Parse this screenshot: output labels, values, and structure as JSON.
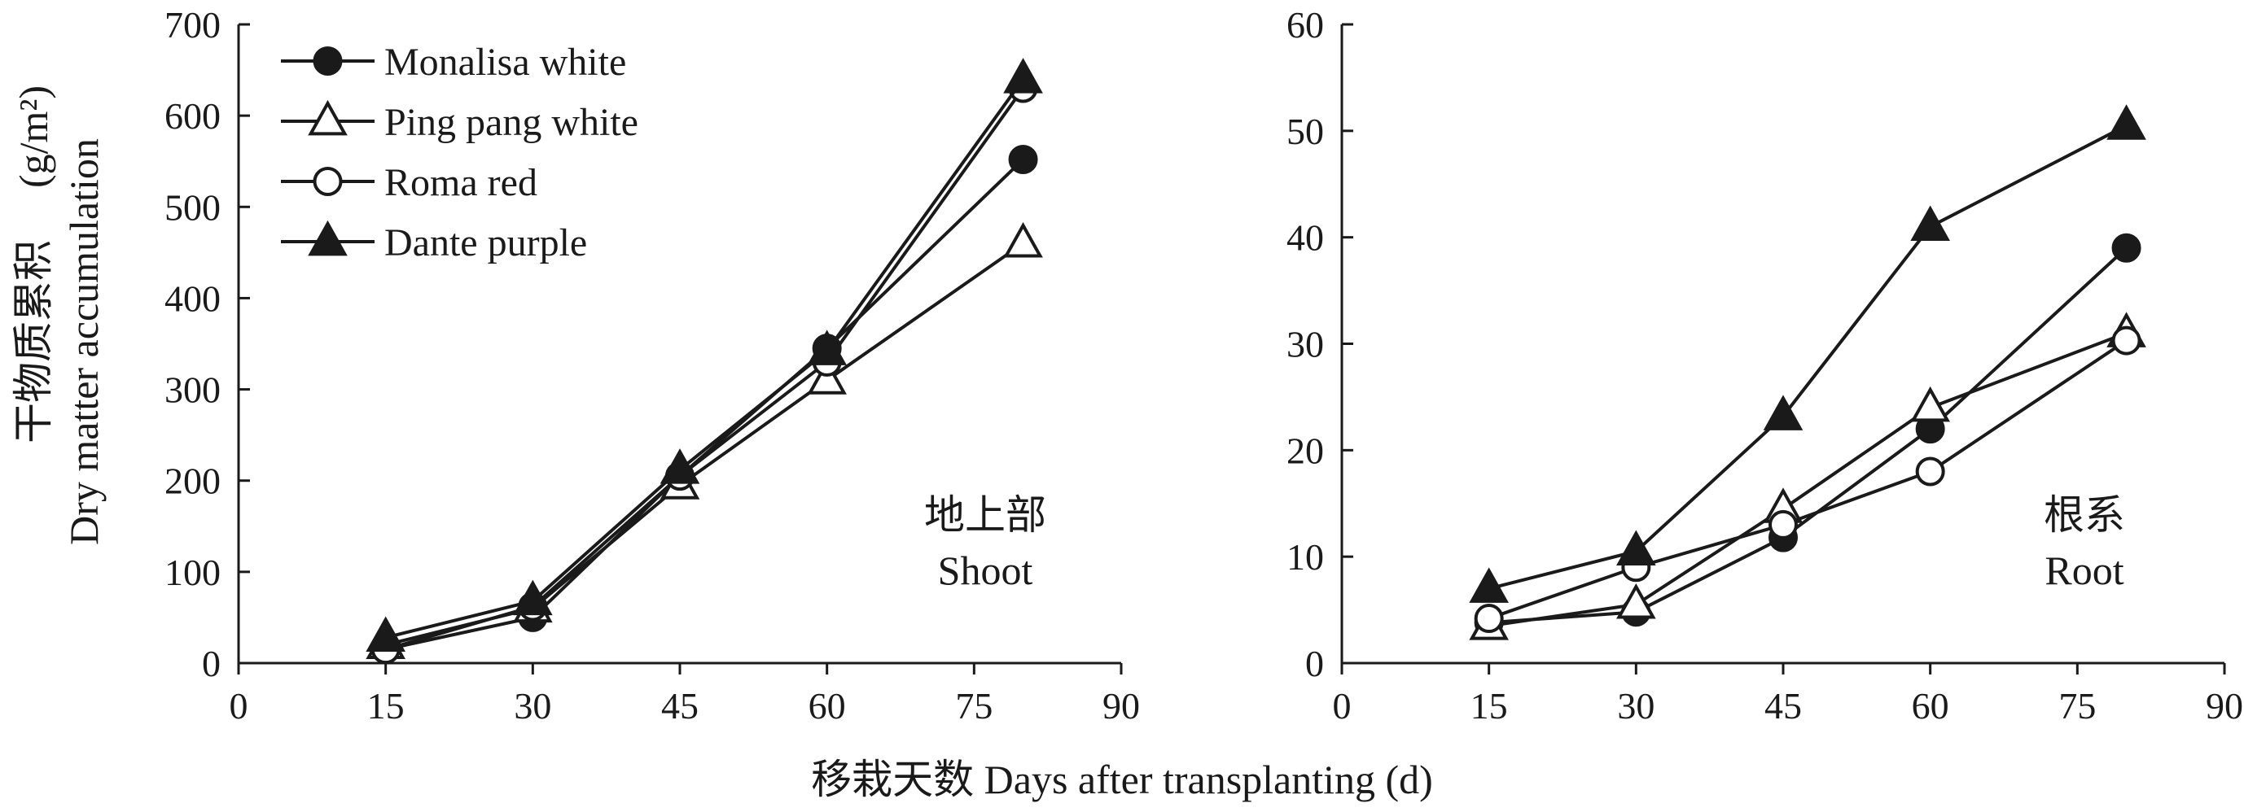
{
  "figure": {
    "xlabel": "移栽天数 Days after transplanting (d)",
    "ylabel_cn": "干物质累积",
    "ylabel_en": "Dry matter accumulation",
    "ylabel_unit": "(g/m²)"
  },
  "legend": [
    {
      "name": "Monalisa white",
      "marker": "filled-circle"
    },
    {
      "name": "Ping pang white",
      "marker": "open-triangle"
    },
    {
      "name": "Roma red",
      "marker": "open-circle"
    },
    {
      "name": "Dante purple",
      "marker": "filled-triangle"
    }
  ],
  "colors": {
    "line": "#1a1a1a",
    "background": "#ffffff"
  },
  "chart_data": [
    {
      "type": "line",
      "panel_label_cn": "地上部",
      "panel_label_en": "Shoot",
      "x": [
        15,
        30,
        45,
        60,
        80
      ],
      "xlim": [
        0,
        90
      ],
      "xticks": [
        0,
        15,
        30,
        45,
        60,
        75,
        90
      ],
      "ylim": [
        0,
        700
      ],
      "yticks": [
        0,
        100,
        200,
        300,
        400,
        500,
        600,
        700
      ],
      "grid": false,
      "legend_position": "top-left",
      "series": [
        {
          "name": "Monalisa white",
          "marker": "filled-circle",
          "values": [
            15,
            50,
            205,
            345,
            552
          ]
        },
        {
          "name": "Ping pang white",
          "marker": "open-triangle",
          "values": [
            20,
            60,
            195,
            310,
            460
          ]
        },
        {
          "name": "Roma red",
          "marker": "open-circle",
          "values": [
            15,
            62,
            205,
            330,
            630
          ]
        },
        {
          "name": "Dante purple",
          "marker": "filled-triangle",
          "values": [
            28,
            68,
            212,
            342,
            640
          ]
        }
      ]
    },
    {
      "type": "line",
      "panel_label_cn": "根系",
      "panel_label_en": "Root",
      "x": [
        15,
        30,
        45,
        60,
        80
      ],
      "xlim": [
        0,
        90
      ],
      "xticks": [
        0,
        15,
        30,
        45,
        60,
        75,
        90
      ],
      "ylim": [
        0,
        60
      ],
      "yticks": [
        0,
        10,
        20,
        30,
        40,
        50,
        60
      ],
      "grid": false,
      "series": [
        {
          "name": "Monalisa white",
          "marker": "filled-circle",
          "values": [
            3.8,
            4.8,
            11.8,
            22,
            39
          ]
        },
        {
          "name": "Ping pang white",
          "marker": "open-triangle",
          "values": [
            3.5,
            5.5,
            14.5,
            24,
            31
          ]
        },
        {
          "name": "Roma red",
          "marker": "open-circle",
          "values": [
            4.2,
            9,
            13,
            18,
            30.3
          ]
        },
        {
          "name": "Dante purple",
          "marker": "filled-triangle",
          "values": [
            7,
            10.5,
            23.2,
            41,
            50.5
          ]
        }
      ]
    }
  ]
}
